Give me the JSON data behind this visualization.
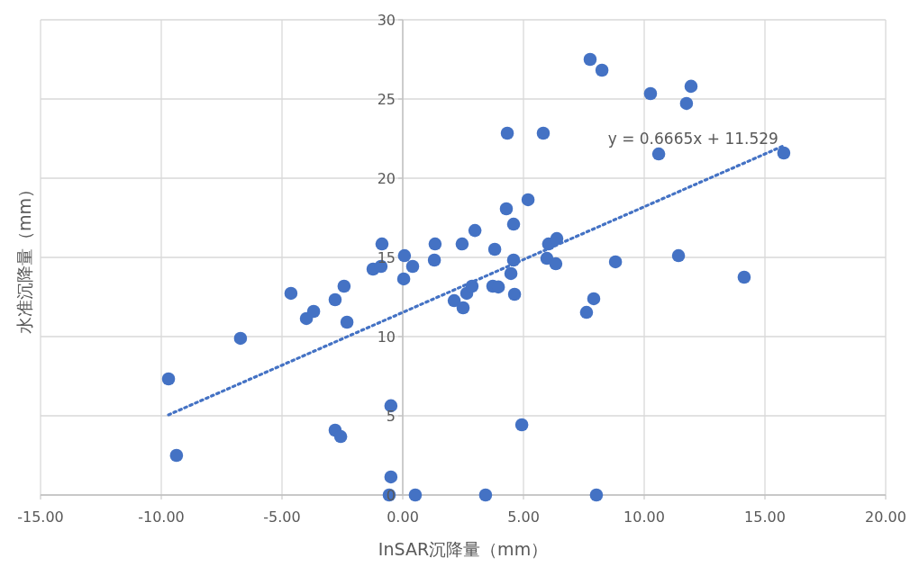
{
  "chart_data": {
    "type": "scatter",
    "xlabel": "InSAR沉降量（mm）",
    "ylabel": "水准沉降量（mm）",
    "xlim": [
      -15,
      20
    ],
    "ylim": [
      0,
      30
    ],
    "xticks": [
      {
        "value": -15,
        "label": "-15.00"
      },
      {
        "value": -10,
        "label": "-10.00"
      },
      {
        "value": -5,
        "label": "-5.00"
      },
      {
        "value": 0,
        "label": "0.00"
      },
      {
        "value": 5,
        "label": "5.00"
      },
      {
        "value": 10,
        "label": "10.00"
      },
      {
        "value": 15,
        "label": "15.00"
      },
      {
        "value": 20,
        "label": "20.00"
      }
    ],
    "yticks": [
      0,
      5,
      10,
      15,
      20,
      25,
      30
    ],
    "grid": true,
    "marker": "circle",
    "annotations": [
      "y = 0.6665x + 11.529"
    ],
    "series": [
      {
        "type": "scatter",
        "color": "#4472c4",
        "x": [
          -9.7,
          -9.37,
          -6.72,
          -4.63,
          -3.99,
          -3.69,
          -2.8,
          -2.43,
          -2.31,
          -2.8,
          -2.57,
          -1.23,
          -0.9,
          -0.86,
          -0.49,
          -0.49,
          -0.56,
          0.07,
          0.04,
          0.41,
          0.52,
          1.31,
          1.34,
          2.13,
          2.46,
          2.5,
          2.65,
          2.87,
          2.99,
          3.43,
          3.81,
          3.73,
          3.96,
          4.29,
          4.48,
          4.59,
          4.59,
          4.63,
          4.93,
          5.19,
          4.33,
          5.82,
          5.97,
          6.04,
          6.38,
          6.34,
          7.61,
          7.91,
          8.02,
          8.81,
          7.76,
          8.25,
          10.26,
          11.94,
          11.75,
          10.6,
          15.78,
          11.42,
          14.14
        ],
        "values": [
          7.33,
          2.5,
          9.89,
          12.73,
          11.14,
          11.59,
          12.33,
          13.18,
          10.91,
          4.09,
          3.69,
          14.26,
          14.43,
          15.85,
          5.63,
          1.14,
          0,
          15.11,
          13.64,
          14.43,
          0,
          14.83,
          15.85,
          12.27,
          15.85,
          11.82,
          12.73,
          13.18,
          16.7,
          0,
          15.51,
          13.18,
          13.13,
          18.07,
          13.98,
          17.1,
          14.83,
          12.67,
          4.43,
          18.64,
          22.84,
          22.84,
          14.94,
          15.85,
          16.19,
          14.6,
          11.53,
          12.39,
          0,
          14.72,
          27.5,
          26.82,
          25.34,
          25.8,
          24.72,
          21.53,
          21.59,
          15.11,
          13.75
        ]
      },
      {
        "type": "line",
        "color": "#4472c4",
        "line_style": "dotted",
        "marker": "none",
        "x": [
          -9.7,
          15.78
        ],
        "values": [
          5.06,
          22.05
        ]
      }
    ]
  }
}
